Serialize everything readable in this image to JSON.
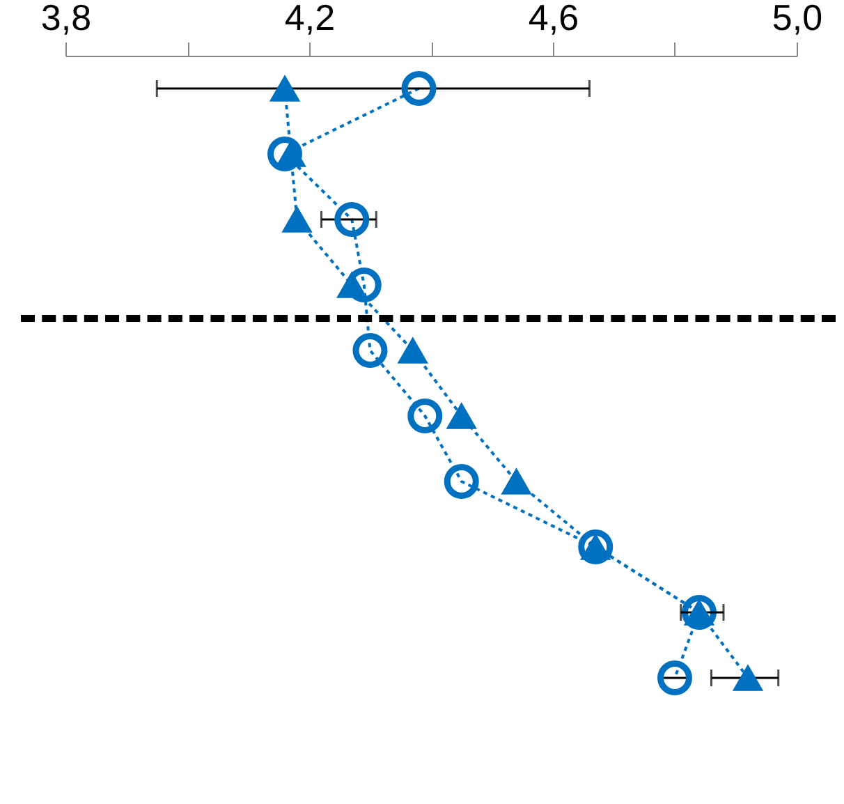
{
  "chart_data": {
    "type": "line",
    "orientation": "horizontal",
    "categories": [
      null,
      null,
      null,
      null,
      null,
      null,
      null,
      null,
      null,
      null
    ],
    "xlim": [
      3.8,
      5.0
    ],
    "xticks": [
      {
        "value": 3.8,
        "label": "3,8"
      },
      {
        "value": 4.0,
        "label": null
      },
      {
        "value": 4.2,
        "label": "4,2"
      },
      {
        "value": 4.4,
        "label": null
      },
      {
        "value": 4.6,
        "label": "4,6"
      },
      {
        "value": 4.8,
        "label": null
      },
      {
        "value": 5.0,
        "label": "5,0"
      }
    ],
    "tick_labels": "x",
    "line_style": "dashed",
    "series": [
      {
        "color": "#0070c0",
        "marker": "circle",
        "values": [
          4.38,
          4.16,
          4.27,
          4.29,
          4.3,
          4.39,
          4.45,
          4.67,
          4.84,
          4.8
        ],
        "errors": [
          [
            3.95,
            4.66
          ],
          null,
          [
            4.22,
            4.31
          ],
          null,
          null,
          null,
          null,
          null,
          null,
          [
            4.78,
            4.82
          ]
        ]
      },
      {
        "color": "#0070c0",
        "marker": "triangle",
        "values": [
          4.16,
          4.17,
          4.18,
          4.27,
          4.37,
          4.45,
          4.54,
          4.67,
          4.84,
          4.92
        ],
        "errors": [
          null,
          null,
          null,
          null,
          null,
          null,
          null,
          null,
          [
            4.81,
            4.88
          ],
          [
            4.86,
            4.97
          ]
        ]
      }
    ]
  }
}
